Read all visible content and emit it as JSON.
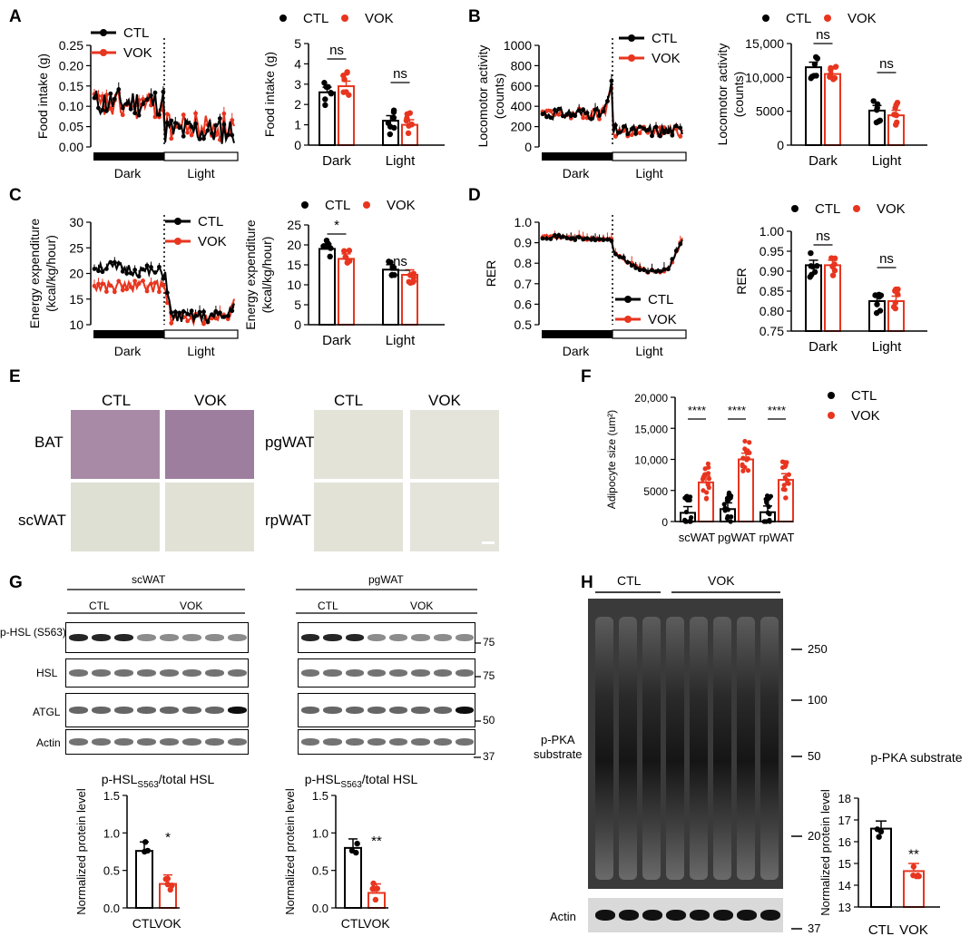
{
  "panels": {
    "A": "A",
    "B": "B",
    "C": "C",
    "D": "D",
    "E": "E",
    "F": "F",
    "G": "G",
    "H": "H"
  },
  "common": {
    "ctl": "CTL",
    "vok": "VOK",
    "dark": "Dark",
    "light": "Light",
    "ns": "ns",
    "star1": "*",
    "star2": "**",
    "star4": "****"
  },
  "colors": {
    "ctl": "#000000",
    "vok": "#e8351f"
  },
  "A": {
    "trace_ylabel": "Food intake (g)",
    "trace_yticks": [
      "0.00",
      "0.05",
      "0.10",
      "0.15",
      "0.20",
      "0.25"
    ],
    "bar_ylabel": "Food intake (g)",
    "bar_yticks": [
      "0",
      "1",
      "2",
      "3",
      "4",
      "5"
    ]
  },
  "B": {
    "trace_ylabel_1": "Locomotor activity",
    "trace_ylabel_2": "(counts)",
    "trace_yticks": [
      "0",
      "200",
      "400",
      "600",
      "800",
      "1000"
    ],
    "bar_ylabel_1": "Locomotor activity",
    "bar_ylabel_2": "(counts)",
    "bar_yticks": [
      "0",
      "5000",
      "10,000",
      "15,000"
    ]
  },
  "C": {
    "trace_ylabel_1": "Energy expenditure",
    "trace_ylabel_2": "(kcal/kg/hour)",
    "trace_yticks": [
      "10",
      "15",
      "20",
      "25",
      "30"
    ],
    "bar_ylabel_1": "Energy expenditure",
    "bar_ylabel_2": "(kcal/kg/hour)",
    "bar_yticks": [
      "0",
      "5",
      "10",
      "15",
      "20",
      "25"
    ]
  },
  "D": {
    "trace_ylabel": "RER",
    "trace_yticks": [
      "0.5",
      "0.6",
      "0.7",
      "0.8",
      "0.9",
      "1.0"
    ],
    "bar_ylabel": "RER",
    "bar_yticks": [
      "0.75",
      "0.80",
      "0.85",
      "0.90",
      "0.95",
      "1.00"
    ]
  },
  "E": {
    "tissues": [
      "BAT",
      "scWAT",
      "pgWAT",
      "rpWAT"
    ]
  },
  "F": {
    "ylabel": "Adipocyte size (um²)",
    "yticks": [
      "0",
      "5000",
      "10,000",
      "15,000",
      "20,000"
    ],
    "categories": [
      "scWAT",
      "pgWAT",
      "rpWAT"
    ]
  },
  "G": {
    "tissue1": "scWAT",
    "tissue2": "pgWAT",
    "proteins": [
      "p-HSL (S563)",
      "HSL",
      "ATGL",
      "Actin"
    ],
    "mw": [
      "75",
      "75",
      "50",
      "37"
    ],
    "ratio_title_a": "p-HSL",
    "ratio_title_sub": "S563",
    "ratio_title_b": "/total HSL",
    "ylabel": "Normalized protein level",
    "yticks": [
      "0.0",
      "0.5",
      "1.0",
      "1.5"
    ]
  },
  "H": {
    "protein_1": "p-PKA",
    "protein_2": "substrate",
    "actin": "Actin",
    "mw": [
      "250",
      "100",
      "50",
      "20",
      "37"
    ],
    "bar_title": "p-PKA substrate",
    "ylabel": "Normalized protein level",
    "yticks": [
      "13",
      "14",
      "15",
      "16",
      "17",
      "18"
    ]
  },
  "chart_data": [
    {
      "id": "A-trace",
      "type": "line",
      "ylabel": "Food intake (g)",
      "ylim": [
        0,
        0.25
      ],
      "phases": [
        "Dark",
        "Light"
      ],
      "series": [
        {
          "name": "CTL",
          "dark_mean": 0.11,
          "light_mean": 0.04
        },
        {
          "name": "VOK",
          "dark_mean": 0.1,
          "light_mean": 0.05
        }
      ]
    },
    {
      "id": "A-bar",
      "type": "bar",
      "categories": [
        "Dark",
        "Light"
      ],
      "ylabel": "Food intake (g)",
      "ylim": [
        0,
        5
      ],
      "series": [
        {
          "name": "CTL",
          "values": [
            2.6,
            1.2
          ]
        },
        {
          "name": "VOK",
          "values": [
            2.9,
            1.0
          ]
        }
      ],
      "annotations": [
        "ns",
        "ns"
      ]
    },
    {
      "id": "B-trace",
      "type": "line",
      "ylabel": "Locomotor activity (counts)",
      "ylim": [
        0,
        1000
      ],
      "phases": [
        "Dark",
        "Light"
      ],
      "series": [
        {
          "name": "CTL",
          "dark_mean": 330,
          "light_mean": 160
        },
        {
          "name": "VOK",
          "dark_mean": 320,
          "light_mean": 150
        }
      ]
    },
    {
      "id": "B-bar",
      "type": "bar",
      "categories": [
        "Dark",
        "Light"
      ],
      "ylabel": "Locomotor activity (counts)",
      "ylim": [
        0,
        15000
      ],
      "series": [
        {
          "name": "CTL",
          "values": [
            11500,
            5100
          ]
        },
        {
          "name": "VOK",
          "values": [
            10500,
            4400
          ]
        }
      ],
      "annotations": [
        "ns",
        "ns"
      ]
    },
    {
      "id": "C-trace",
      "type": "line",
      "ylabel": "Energy expenditure (kcal/kg/hour)",
      "ylim": [
        10,
        30
      ],
      "phases": [
        "Dark",
        "Light"
      ],
      "series": [
        {
          "name": "CTL",
          "dark_mean": 21.5,
          "light_mean": 11.5
        },
        {
          "name": "VOK",
          "dark_mean": 17.5,
          "light_mean": 11.3
        }
      ]
    },
    {
      "id": "C-bar",
      "type": "bar",
      "categories": [
        "Dark",
        "Light"
      ],
      "ylabel": "Energy expenditure (kcal/kg/hour)",
      "ylim": [
        0,
        25
      ],
      "series": [
        {
          "name": "CTL",
          "values": [
            19,
            13.8
          ]
        },
        {
          "name": "VOK",
          "values": [
            16.5,
            12.5
          ]
        }
      ],
      "annotations": [
        "*",
        "ns"
      ]
    },
    {
      "id": "D-trace",
      "type": "line",
      "ylabel": "RER",
      "ylim": [
        0.5,
        1.0
      ],
      "phases": [
        "Dark",
        "Light"
      ],
      "series": [
        {
          "name": "CTL",
          "dark_mean": 0.92,
          "light_mean": 0.79
        },
        {
          "name": "VOK",
          "dark_mean": 0.92,
          "light_mean": 0.8
        }
      ]
    },
    {
      "id": "D-bar",
      "type": "bar",
      "categories": [
        "Dark",
        "Light"
      ],
      "ylabel": "RER",
      "ylim": [
        0.75,
        1.0
      ],
      "series": [
        {
          "name": "CTL",
          "values": [
            0.915,
            0.825
          ]
        },
        {
          "name": "VOK",
          "values": [
            0.915,
            0.825
          ]
        }
      ],
      "annotations": [
        "ns",
        "ns"
      ]
    },
    {
      "id": "F",
      "type": "bar",
      "categories": [
        "scWAT",
        "pgWAT",
        "rpWAT"
      ],
      "ylabel": "Adipocyte size (um²)",
      "ylim": [
        0,
        20000
      ],
      "series": [
        {
          "name": "CTL",
          "values": [
            1400,
            2000,
            1500
          ]
        },
        {
          "name": "VOK",
          "values": [
            6300,
            10000,
            6700
          ]
        }
      ],
      "annotations": [
        "****",
        "****",
        "****"
      ]
    },
    {
      "id": "G-scWAT",
      "type": "bar",
      "categories": [
        "CTL",
        "VOK"
      ],
      "ylabel": "Normalized protein level",
      "ylim": [
        0,
        1.5
      ],
      "values": [
        0.76,
        0.32
      ],
      "annotations": [
        "",
        "*"
      ]
    },
    {
      "id": "G-pgWAT",
      "type": "bar",
      "categories": [
        "CTL",
        "VOK"
      ],
      "ylabel": "Normalized protein level",
      "ylim": [
        0,
        1.5
      ],
      "values": [
        0.8,
        0.2
      ],
      "annotations": [
        "",
        "**"
      ]
    },
    {
      "id": "H-bar",
      "type": "bar",
      "categories": [
        "CTL",
        "VOK"
      ],
      "ylabel": "Normalized protein level",
      "ylim": [
        13,
        18
      ],
      "values": [
        16.6,
        14.65
      ],
      "annotations": [
        "",
        "**"
      ]
    }
  ]
}
